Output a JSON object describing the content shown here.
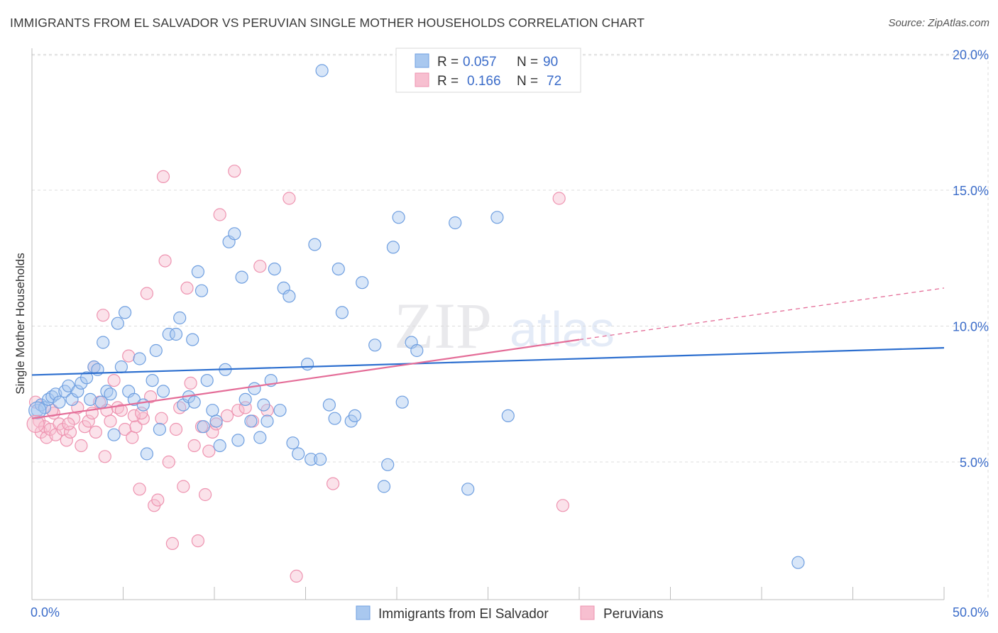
{
  "header": {
    "title": "IMMIGRANTS FROM EL SALVADOR VS PERUVIAN SINGLE MOTHER HOUSEHOLDS CORRELATION CHART",
    "source": "Source: ZipAtlas.com"
  },
  "watermark": {
    "zip": "ZIP",
    "atlas": "atlas"
  },
  "colors": {
    "blue_fill": "#a9c8ef",
    "blue_stroke": "#6f9fe0",
    "blue_line": "#2d6fcf",
    "pink_fill": "#f7bfd0",
    "pink_stroke": "#ee93b0",
    "pink_line": "#e46d98",
    "axis_text": "#3b6cc9",
    "grid": "#dcdcdc"
  },
  "legend": {
    "r_label": "R =",
    "n_label": "N =",
    "rows": [
      {
        "series": "blue",
        "r": "0.057",
        "n": "90"
      },
      {
        "series": "pink",
        "r": "0.166",
        "n": "72"
      }
    ]
  },
  "chart_data": {
    "type": "scatter",
    "title": "IMMIGRANTS FROM EL SALVADOR VS PERUVIAN SINGLE MOTHER HOUSEHOLDS CORRELATION CHART",
    "xlabel": "",
    "ylabel": "Single Mother Households",
    "xlim": [
      0,
      50
    ],
    "ylim": [
      0,
      20.5
    ],
    "x_tick_labels": [
      "0.0%",
      "50.0%"
    ],
    "y_ticks": [
      5,
      10,
      15,
      20
    ],
    "y_tick_labels": [
      "5.0%",
      "10.0%",
      "15.0%",
      "20.0%"
    ],
    "series": [
      {
        "name": "Immigrants from El Salvador",
        "color": "blue",
        "trend": {
          "x0": 0,
          "y0": 8.2,
          "x1": 50,
          "y1": 9.2
        },
        "points": [
          [
            0.3,
            6.9
          ],
          [
            0.5,
            7.1
          ],
          [
            0.7,
            7.0
          ],
          [
            0.9,
            7.3
          ],
          [
            1.1,
            7.4
          ],
          [
            1.3,
            7.5
          ],
          [
            1.5,
            7.2
          ],
          [
            1.8,
            7.6
          ],
          [
            2.0,
            7.8
          ],
          [
            2.2,
            7.3
          ],
          [
            2.5,
            7.6
          ],
          [
            2.7,
            7.9
          ],
          [
            3.0,
            8.1
          ],
          [
            3.2,
            7.3
          ],
          [
            3.4,
            8.5
          ],
          [
            3.6,
            8.4
          ],
          [
            3.8,
            7.2
          ],
          [
            4.1,
            7.6
          ],
          [
            4.3,
            7.5
          ],
          [
            4.5,
            6.0
          ],
          [
            4.7,
            10.1
          ],
          [
            4.9,
            8.5
          ],
          [
            5.1,
            10.5
          ],
          [
            5.3,
            7.6
          ],
          [
            5.6,
            7.3
          ],
          [
            5.9,
            8.8
          ],
          [
            6.1,
            7.1
          ],
          [
            6.3,
            5.3
          ],
          [
            6.6,
            8.0
          ],
          [
            6.8,
            9.1
          ],
          [
            7.0,
            6.2
          ],
          [
            7.2,
            7.6
          ],
          [
            7.5,
            9.7
          ],
          [
            7.9,
            9.7
          ],
          [
            8.1,
            10.3
          ],
          [
            8.3,
            7.1
          ],
          [
            8.6,
            7.4
          ],
          [
            8.8,
            9.5
          ],
          [
            9.1,
            12.0
          ],
          [
            9.3,
            11.3
          ],
          [
            9.6,
            8.0
          ],
          [
            9.9,
            6.9
          ],
          [
            10.1,
            6.5
          ],
          [
            10.3,
            5.6
          ],
          [
            10.6,
            8.4
          ],
          [
            10.8,
            13.1
          ],
          [
            11.1,
            13.4
          ],
          [
            11.3,
            5.8
          ],
          [
            11.5,
            11.8
          ],
          [
            11.7,
            7.3
          ],
          [
            12.0,
            6.5
          ],
          [
            12.2,
            7.7
          ],
          [
            12.5,
            5.9
          ],
          [
            12.7,
            7.1
          ],
          [
            13.1,
            8.0
          ],
          [
            13.3,
            12.1
          ],
          [
            13.6,
            6.9
          ],
          [
            13.8,
            11.4
          ],
          [
            14.1,
            11.1
          ],
          [
            14.3,
            5.7
          ],
          [
            14.6,
            5.3
          ],
          [
            15.1,
            8.6
          ],
          [
            15.3,
            5.1
          ],
          [
            15.5,
            13.0
          ],
          [
            15.8,
            5.1
          ],
          [
            16.3,
            7.1
          ],
          [
            16.6,
            6.6
          ],
          [
            16.8,
            12.1
          ],
          [
            17.0,
            10.5
          ],
          [
            17.5,
            6.5
          ],
          [
            17.7,
            6.7
          ],
          [
            18.1,
            11.6
          ],
          [
            18.8,
            9.3
          ],
          [
            19.3,
            4.1
          ],
          [
            19.5,
            4.9
          ],
          [
            19.8,
            12.9
          ],
          [
            20.1,
            14.0
          ],
          [
            20.3,
            7.2
          ],
          [
            20.8,
            9.4
          ],
          [
            21.1,
            9.1
          ],
          [
            23.2,
            13.8
          ],
          [
            23.9,
            4.0
          ],
          [
            25.5,
            14.0
          ],
          [
            26.1,
            6.7
          ],
          [
            42.0,
            1.3
          ],
          [
            15.9,
            19.4
          ],
          [
            3.9,
            9.4
          ],
          [
            12.9,
            6.5
          ],
          [
            8.9,
            7.2
          ],
          [
            9.4,
            6.3
          ]
        ]
      },
      {
        "name": "Peruvians",
        "color": "pink",
        "trend": {
          "x0": 0,
          "y0": 6.6,
          "x1": 30,
          "y1": 9.5
        },
        "trend_dashed": {
          "x0": 30,
          "y0": 9.5,
          "x1": 50,
          "y1": 11.4
        },
        "points": [
          [
            0.2,
            7.2
          ],
          [
            0.4,
            6.5
          ],
          [
            0.5,
            6.1
          ],
          [
            0.7,
            6.3
          ],
          [
            0.8,
            5.9
          ],
          [
            1.0,
            6.2
          ],
          [
            1.2,
            6.8
          ],
          [
            1.3,
            6.0
          ],
          [
            1.5,
            6.4
          ],
          [
            1.7,
            6.2
          ],
          [
            1.9,
            5.8
          ],
          [
            2.1,
            6.1
          ],
          [
            2.3,
            6.6
          ],
          [
            2.5,
            7.0
          ],
          [
            2.7,
            5.6
          ],
          [
            2.9,
            6.3
          ],
          [
            3.1,
            6.5
          ],
          [
            3.3,
            6.8
          ],
          [
            3.5,
            6.1
          ],
          [
            3.7,
            7.2
          ],
          [
            3.9,
            10.4
          ],
          [
            4.1,
            6.9
          ],
          [
            4.3,
            6.5
          ],
          [
            4.5,
            8.0
          ],
          [
            4.7,
            7.0
          ],
          [
            4.9,
            6.9
          ],
          [
            5.1,
            6.2
          ],
          [
            5.3,
            8.9
          ],
          [
            5.5,
            5.9
          ],
          [
            5.7,
            6.3
          ],
          [
            5.9,
            4.0
          ],
          [
            6.1,
            6.6
          ],
          [
            6.3,
            11.2
          ],
          [
            6.5,
            7.4
          ],
          [
            6.7,
            3.4
          ],
          [
            6.9,
            3.6
          ],
          [
            7.1,
            6.6
          ],
          [
            7.3,
            12.4
          ],
          [
            7.5,
            5.0
          ],
          [
            7.7,
            2.0
          ],
          [
            7.9,
            6.2
          ],
          [
            8.1,
            7.0
          ],
          [
            8.3,
            4.1
          ],
          [
            8.5,
            11.4
          ],
          [
            8.7,
            7.9
          ],
          [
            8.9,
            5.6
          ],
          [
            9.1,
            2.1
          ],
          [
            9.3,
            6.3
          ],
          [
            9.5,
            3.8
          ],
          [
            9.7,
            5.4
          ],
          [
            9.9,
            6.1
          ],
          [
            10.1,
            6.4
          ],
          [
            10.3,
            14.1
          ],
          [
            10.7,
            6.7
          ],
          [
            11.1,
            15.7
          ],
          [
            11.3,
            6.9
          ],
          [
            11.7,
            7.0
          ],
          [
            12.1,
            6.5
          ],
          [
            12.5,
            12.2
          ],
          [
            12.9,
            6.9
          ],
          [
            14.1,
            14.7
          ],
          [
            14.5,
            0.8
          ],
          [
            16.5,
            4.2
          ],
          [
            28.9,
            14.7
          ],
          [
            29.1,
            3.4
          ],
          [
            7.2,
            15.5
          ],
          [
            3.4,
            8.5
          ],
          [
            5.6,
            6.7
          ],
          [
            6.0,
            6.8
          ],
          [
            4.0,
            5.2
          ],
          [
            2.0,
            6.4
          ],
          [
            1.1,
            6.9
          ]
        ]
      }
    ]
  },
  "bottom_legend": {
    "items": [
      {
        "label": "Immigrants from El Salvador",
        "color": "blue"
      },
      {
        "label": "Peruvians",
        "color": "pink"
      }
    ]
  }
}
